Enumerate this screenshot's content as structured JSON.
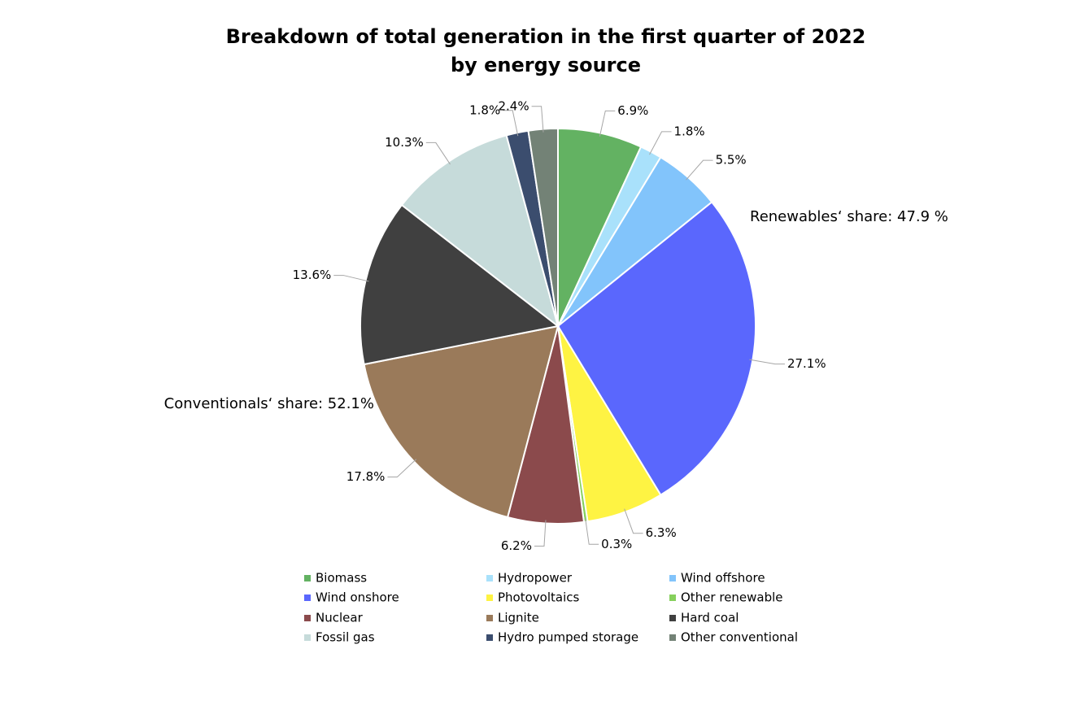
{
  "chart_data": {
    "type": "pie",
    "title": "Breakdown of total generation in the first quarter of 2022 by energy source",
    "categories": [
      "Biomass",
      "Hydropower",
      "Wind offshore",
      "Wind onshore",
      "Photovoltaics",
      "Other renewable",
      "Nuclear",
      "Lignite",
      "Hard coal",
      "Fossil gas",
      "Hydro pumped storage",
      "Other conventional"
    ],
    "values": [
      6.9,
      1.8,
      5.5,
      27.1,
      6.3,
      0.3,
      6.2,
      17.8,
      13.6,
      10.3,
      1.8,
      2.4
    ],
    "value_labels": [
      "6.9%",
      "1.8%",
      "5.5%",
      "27.1%",
      "6.3%",
      "0.3%",
      "6.2%",
      "17.8%",
      "13.6%",
      "10.3%",
      "1.8%",
      "2.4%"
    ],
    "colors": [
      "#63b262",
      "#a9e1fb",
      "#82c4fb",
      "#5a67fd",
      "#fef343",
      "#86d05c",
      "#8b4a4c",
      "#9a7a5a",
      "#404040",
      "#c6dbda",
      "#3b4d6e",
      "#738276"
    ],
    "annotations": [
      "Renewables‘ share: 47.9 %",
      "Conventionals‘ share: 52.1%"
    ]
  }
}
